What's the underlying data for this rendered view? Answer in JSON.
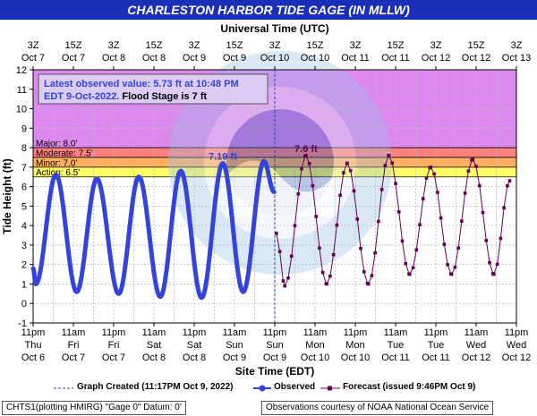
{
  "title": "CHARLESTON HARBOR TIDE GAGE (IN MLLW)",
  "chart_data": {
    "type": "line",
    "top_axis_title": "Universal Time (UTC)",
    "bottom_axis_title": "Site Time (EDT)",
    "ylabel": "Tide Height (ft)",
    "ylim": [
      -1,
      12
    ],
    "yticks": [
      -1,
      0,
      1,
      2,
      3,
      4,
      5,
      6,
      7,
      8,
      9,
      10,
      11,
      12
    ],
    "x_unit": "hours after 11pm EDT Oct 6",
    "xlim": [
      0,
      138
    ],
    "top_ticks": [
      {
        "hour": 0,
        "l1": "3Z",
        "l2": "Oct 7"
      },
      {
        "hour": 12,
        "l1": "15Z",
        "l2": "Oct 7"
      },
      {
        "hour": 24,
        "l1": "3Z",
        "l2": "Oct 8"
      },
      {
        "hour": 36,
        "l1": "15Z",
        "l2": "Oct 8"
      },
      {
        "hour": 48,
        "l1": "3Z",
        "l2": "Oct 9"
      },
      {
        "hour": 60,
        "l1": "15Z",
        "l2": "Oct 9"
      },
      {
        "hour": 72,
        "l1": "3Z",
        "l2": "Oct 10"
      },
      {
        "hour": 84,
        "l1": "15Z",
        "l2": "Oct 10"
      },
      {
        "hour": 96,
        "l1": "3Z",
        "l2": "Oct 11"
      },
      {
        "hour": 108,
        "l1": "15Z",
        "l2": "Oct 11"
      },
      {
        "hour": 120,
        "l1": "3Z",
        "l2": "Oct 12"
      },
      {
        "hour": 132,
        "l1": "15Z",
        "l2": "Oct 12"
      },
      {
        "hour": 144,
        "l1": "3Z",
        "l2": "Oct 13"
      }
    ],
    "bottom_ticks": [
      {
        "hour": 0,
        "l1": "11pm",
        "l2": "Thu",
        "l3": "Oct 6"
      },
      {
        "hour": 12,
        "l1": "11am",
        "l2": "Fri",
        "l3": "Oct 7"
      },
      {
        "hour": 24,
        "l1": "11pm",
        "l2": "Fri",
        "l3": "Oct 7"
      },
      {
        "hour": 36,
        "l1": "11am",
        "l2": "Sat",
        "l3": "Oct 8"
      },
      {
        "hour": 48,
        "l1": "11pm",
        "l2": "Sat",
        "l3": "Oct 8"
      },
      {
        "hour": 60,
        "l1": "11am",
        "l2": "Sun",
        "l3": "Oct 9"
      },
      {
        "hour": 72,
        "l1": "11pm",
        "l2": "Sun",
        "l3": "Oct 9"
      },
      {
        "hour": 84,
        "l1": "11am",
        "l2": "Mon",
        "l3": "Oct 10"
      },
      {
        "hour": 96,
        "l1": "11pm",
        "l2": "Mon",
        "l3": "Oct 10"
      },
      {
        "hour": 108,
        "l1": "11am",
        "l2": "Tue",
        "l3": "Oct 11"
      },
      {
        "hour": 120,
        "l1": "11pm",
        "l2": "Tue",
        "l3": "Oct 11"
      },
      {
        "hour": 132,
        "l1": "11am",
        "l2": "Wed",
        "l3": "Oct 12"
      },
      {
        "hour": 144,
        "l1": "11pm",
        "l2": "Wed",
        "l3": "Oct 12"
      }
    ],
    "flood_bands": [
      {
        "name": "Major",
        "from": 8.0,
        "to": 12,
        "color": "#dd88ee",
        "label": "Major: 8.0'"
      },
      {
        "name": "Moderate",
        "from": 7.5,
        "to": 8.0,
        "color": "#ff8080",
        "label": "Moderate: 7.5'"
      },
      {
        "name": "Minor",
        "from": 7.0,
        "to": 7.5,
        "color": "#ffb060",
        "label": "Minor: 7.0'"
      },
      {
        "name": "Action",
        "from": 6.5,
        "to": 7.0,
        "color": "#ffff66",
        "label": "Action: 6.5'"
      }
    ],
    "graph_created_hour": 72,
    "observed": {
      "name": "Observed",
      "color": "#3344dd",
      "extrema": [
        [
          0,
          1.8
        ],
        [
          0.8,
          1.0
        ],
        [
          6.8,
          6.6
        ],
        [
          13.0,
          0.6
        ],
        [
          19.0,
          6.4
        ],
        [
          25.5,
          0.5
        ],
        [
          31.5,
          6.5
        ],
        [
          37.9,
          0.35
        ],
        [
          44.0,
          6.8
        ],
        [
          50.2,
          0.3
        ],
        [
          56.5,
          7.19
        ],
        [
          62.6,
          0.6
        ],
        [
          68.8,
          7.3
        ],
        [
          71.8,
          5.73
        ]
      ]
    },
    "forecast": {
      "name": "Forecast (issued 9:46PM Oct 9)",
      "color": "#660055",
      "extrema": [
        [
          72.5,
          3.6
        ],
        [
          75.0,
          0.9
        ],
        [
          81.3,
          7.6
        ],
        [
          87.5,
          1.0
        ],
        [
          93.6,
          7.2
        ],
        [
          99.9,
          1.0
        ],
        [
          106.0,
          7.6
        ],
        [
          112.2,
          1.5
        ],
        [
          118.5,
          7.0
        ],
        [
          124.7,
          1.5
        ],
        [
          131.0,
          7.4
        ],
        [
          137.3,
          1.5
        ],
        [
          142.0,
          6.3
        ]
      ]
    },
    "annotations": [
      {
        "text": "7.19 ft",
        "hour": 56.5,
        "y": 7.19,
        "color": "#3344dd"
      },
      {
        "text": "7.6 ft",
        "hour": 81.3,
        "y": 7.6,
        "color": "#660055"
      }
    ],
    "info_box": {
      "line1": "Latest observed value: 5.73 ft at 10:48 PM",
      "line2a": "EDT 9-Oct-2022.",
      "line2b": "Flood Stage is 7 ft"
    }
  },
  "legend": {
    "graph_created": "Graph Created (11:17PM Oct 9, 2022)",
    "observed": "Observed",
    "forecast": "Forecast (issued 9:46PM Oct 9)"
  },
  "status": {
    "left": "CHTS1(plotting HMIRG) \"Gage 0\" Datum:  0'",
    "right": "Observations courtesy of NOAA National Ocean Service"
  }
}
